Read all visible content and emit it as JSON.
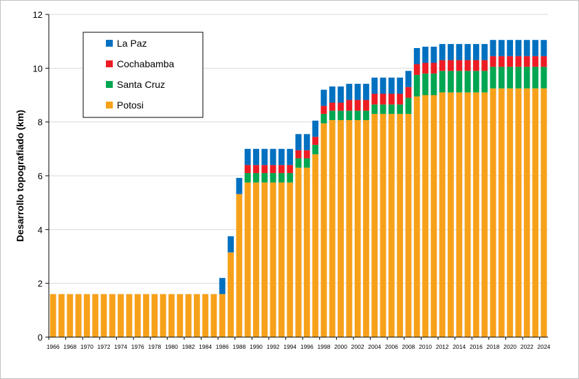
{
  "chart_data": {
    "type": "bar",
    "stacked": true,
    "title": "",
    "xlabel": "",
    "ylabel": "Desarrollo  topografiado (km)",
    "ylim": [
      0,
      12
    ],
    "yticks": [
      0,
      2,
      4,
      6,
      8,
      10,
      12
    ],
    "grid": true,
    "legend_position": "top-left",
    "categories": [
      "1966",
      "1967",
      "1968",
      "1969",
      "1970",
      "1971",
      "1972",
      "1973",
      "1974",
      "1975",
      "1976",
      "1977",
      "1978",
      "1979",
      "1980",
      "1981",
      "1982",
      "1983",
      "1984",
      "1985",
      "1986",
      "1987",
      "1988",
      "1989",
      "1990",
      "1991",
      "1992",
      "1993",
      "1994",
      "1995",
      "1996",
      "1997",
      "1998",
      "1999",
      "2000",
      "2001",
      "2002",
      "2003",
      "2004",
      "2005",
      "2006",
      "2007",
      "2008",
      "2009",
      "2010",
      "2011",
      "2012",
      "2013",
      "2014",
      "2015",
      "2016",
      "2017",
      "2018",
      "2019",
      "2020",
      "2021",
      "2022",
      "2023",
      "2024"
    ],
    "tick_labels": [
      "1966",
      "1968",
      "1970",
      "1972",
      "1974",
      "1976",
      "1978",
      "1980",
      "1982",
      "1984",
      "1986",
      "1988",
      "1990",
      "1992",
      "1994",
      "1996",
      "1998",
      "2000",
      "2002",
      "2004",
      "2006",
      "2008",
      "2010",
      "2012",
      "2014",
      "2016",
      "2018",
      "2020",
      "2022",
      "2024"
    ],
    "series": [
      {
        "name": "Potosi",
        "color": "#f7a11a",
        "values": [
          1.6,
          1.6,
          1.6,
          1.6,
          1.6,
          1.6,
          1.6,
          1.6,
          1.6,
          1.6,
          1.6,
          1.6,
          1.6,
          1.6,
          1.6,
          1.6,
          1.6,
          1.6,
          1.6,
          1.6,
          1.6,
          3.15,
          5.32,
          5.75,
          5.75,
          5.75,
          5.75,
          5.75,
          5.75,
          6.3,
          6.3,
          6.8,
          7.95,
          8.07,
          8.07,
          8.07,
          8.07,
          8.07,
          8.3,
          8.3,
          8.3,
          8.3,
          8.3,
          8.95,
          9.0,
          9.0,
          9.1,
          9.1,
          9.1,
          9.1,
          9.1,
          9.1,
          9.25,
          9.25,
          9.25,
          9.25,
          9.25,
          9.25,
          9.25
        ]
      },
      {
        "name": "Santa Cruz",
        "color": "#00a651",
        "values": [
          0,
          0,
          0,
          0,
          0,
          0,
          0,
          0,
          0,
          0,
          0,
          0,
          0,
          0,
          0,
          0,
          0,
          0,
          0,
          0,
          0,
          0,
          0,
          0.35,
          0.35,
          0.35,
          0.35,
          0.35,
          0.35,
          0.35,
          0.35,
          0.35,
          0.35,
          0.35,
          0.35,
          0.35,
          0.35,
          0.35,
          0.35,
          0.35,
          0.35,
          0.35,
          0.6,
          0.8,
          0.8,
          0.8,
          0.8,
          0.8,
          0.8,
          0.8,
          0.8,
          0.8,
          0.8,
          0.8,
          0.8,
          0.8,
          0.8,
          0.8,
          0.8
        ]
      },
      {
        "name": "Cochabamba",
        "color": "#ed1c24",
        "values": [
          0,
          0,
          0,
          0,
          0,
          0,
          0,
          0,
          0,
          0,
          0,
          0,
          0,
          0,
          0,
          0,
          0,
          0,
          0,
          0,
          0,
          0,
          0,
          0.3,
          0.3,
          0.3,
          0.3,
          0.3,
          0.3,
          0.3,
          0.3,
          0.3,
          0.3,
          0.3,
          0.3,
          0.4,
          0.4,
          0.4,
          0.4,
          0.4,
          0.4,
          0.4,
          0.4,
          0.4,
          0.4,
          0.4,
          0.4,
          0.4,
          0.4,
          0.4,
          0.4,
          0.4,
          0.4,
          0.4,
          0.4,
          0.4,
          0.4,
          0.4,
          0.4
        ]
      },
      {
        "name": "La Paz",
        "color": "#0070c0",
        "values": [
          0,
          0,
          0,
          0,
          0,
          0,
          0,
          0,
          0,
          0,
          0,
          0,
          0,
          0,
          0,
          0,
          0,
          0,
          0,
          0,
          0.6,
          0.6,
          0.6,
          0.6,
          0.6,
          0.6,
          0.6,
          0.6,
          0.6,
          0.6,
          0.6,
          0.6,
          0.6,
          0.6,
          0.6,
          0.6,
          0.6,
          0.6,
          0.6,
          0.6,
          0.6,
          0.6,
          0.6,
          0.6,
          0.6,
          0.6,
          0.6,
          0.6,
          0.6,
          0.6,
          0.6,
          0.6,
          0.6,
          0.6,
          0.6,
          0.6,
          0.6,
          0.6,
          0.6
        ]
      }
    ],
    "legend_order": [
      "La Paz",
      "Cochabamba",
      "Santa Cruz",
      "Potosi"
    ]
  }
}
